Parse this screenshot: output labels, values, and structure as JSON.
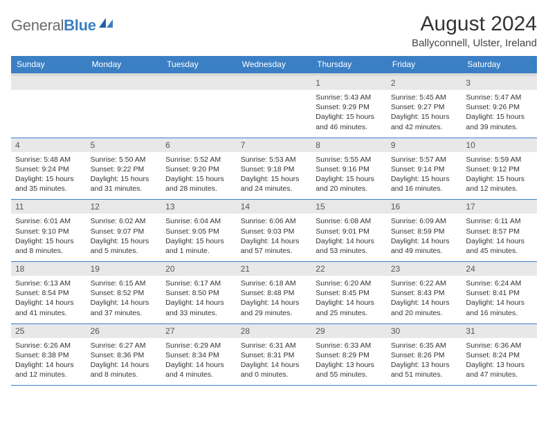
{
  "logo": {
    "word1": "General",
    "word2": "Blue"
  },
  "title": "August 2024",
  "subtitle": "Ballyconnell, Ulster, Ireland",
  "weekdays": [
    "Sunday",
    "Monday",
    "Tuesday",
    "Wednesday",
    "Thursday",
    "Friday",
    "Saturday"
  ],
  "colors": {
    "header_bar": "#3b7fc4",
    "gray_strip": "#d9d9d9",
    "daynum_bg": "#e8e8e8",
    "text": "#333333",
    "logo_gray": "#6b6b6b"
  },
  "weeks": [
    [
      {
        "num": "",
        "lines": []
      },
      {
        "num": "",
        "lines": []
      },
      {
        "num": "",
        "lines": []
      },
      {
        "num": "",
        "lines": []
      },
      {
        "num": "1",
        "lines": [
          "Sunrise: 5:43 AM",
          "Sunset: 9:29 PM",
          "Daylight: 15 hours",
          "and 46 minutes."
        ]
      },
      {
        "num": "2",
        "lines": [
          "Sunrise: 5:45 AM",
          "Sunset: 9:27 PM",
          "Daylight: 15 hours",
          "and 42 minutes."
        ]
      },
      {
        "num": "3",
        "lines": [
          "Sunrise: 5:47 AM",
          "Sunset: 9:26 PM",
          "Daylight: 15 hours",
          "and 39 minutes."
        ]
      }
    ],
    [
      {
        "num": "4",
        "lines": [
          "Sunrise: 5:48 AM",
          "Sunset: 9:24 PM",
          "Daylight: 15 hours",
          "and 35 minutes."
        ]
      },
      {
        "num": "5",
        "lines": [
          "Sunrise: 5:50 AM",
          "Sunset: 9:22 PM",
          "Daylight: 15 hours",
          "and 31 minutes."
        ]
      },
      {
        "num": "6",
        "lines": [
          "Sunrise: 5:52 AM",
          "Sunset: 9:20 PM",
          "Daylight: 15 hours",
          "and 28 minutes."
        ]
      },
      {
        "num": "7",
        "lines": [
          "Sunrise: 5:53 AM",
          "Sunset: 9:18 PM",
          "Daylight: 15 hours",
          "and 24 minutes."
        ]
      },
      {
        "num": "8",
        "lines": [
          "Sunrise: 5:55 AM",
          "Sunset: 9:16 PM",
          "Daylight: 15 hours",
          "and 20 minutes."
        ]
      },
      {
        "num": "9",
        "lines": [
          "Sunrise: 5:57 AM",
          "Sunset: 9:14 PM",
          "Daylight: 15 hours",
          "and 16 minutes."
        ]
      },
      {
        "num": "10",
        "lines": [
          "Sunrise: 5:59 AM",
          "Sunset: 9:12 PM",
          "Daylight: 15 hours",
          "and 12 minutes."
        ]
      }
    ],
    [
      {
        "num": "11",
        "lines": [
          "Sunrise: 6:01 AM",
          "Sunset: 9:10 PM",
          "Daylight: 15 hours",
          "and 8 minutes."
        ]
      },
      {
        "num": "12",
        "lines": [
          "Sunrise: 6:02 AM",
          "Sunset: 9:07 PM",
          "Daylight: 15 hours",
          "and 5 minutes."
        ]
      },
      {
        "num": "13",
        "lines": [
          "Sunrise: 6:04 AM",
          "Sunset: 9:05 PM",
          "Daylight: 15 hours",
          "and 1 minute."
        ]
      },
      {
        "num": "14",
        "lines": [
          "Sunrise: 6:06 AM",
          "Sunset: 9:03 PM",
          "Daylight: 14 hours",
          "and 57 minutes."
        ]
      },
      {
        "num": "15",
        "lines": [
          "Sunrise: 6:08 AM",
          "Sunset: 9:01 PM",
          "Daylight: 14 hours",
          "and 53 minutes."
        ]
      },
      {
        "num": "16",
        "lines": [
          "Sunrise: 6:09 AM",
          "Sunset: 8:59 PM",
          "Daylight: 14 hours",
          "and 49 minutes."
        ]
      },
      {
        "num": "17",
        "lines": [
          "Sunrise: 6:11 AM",
          "Sunset: 8:57 PM",
          "Daylight: 14 hours",
          "and 45 minutes."
        ]
      }
    ],
    [
      {
        "num": "18",
        "lines": [
          "Sunrise: 6:13 AM",
          "Sunset: 8:54 PM",
          "Daylight: 14 hours",
          "and 41 minutes."
        ]
      },
      {
        "num": "19",
        "lines": [
          "Sunrise: 6:15 AM",
          "Sunset: 8:52 PM",
          "Daylight: 14 hours",
          "and 37 minutes."
        ]
      },
      {
        "num": "20",
        "lines": [
          "Sunrise: 6:17 AM",
          "Sunset: 8:50 PM",
          "Daylight: 14 hours",
          "and 33 minutes."
        ]
      },
      {
        "num": "21",
        "lines": [
          "Sunrise: 6:18 AM",
          "Sunset: 8:48 PM",
          "Daylight: 14 hours",
          "and 29 minutes."
        ]
      },
      {
        "num": "22",
        "lines": [
          "Sunrise: 6:20 AM",
          "Sunset: 8:45 PM",
          "Daylight: 14 hours",
          "and 25 minutes."
        ]
      },
      {
        "num": "23",
        "lines": [
          "Sunrise: 6:22 AM",
          "Sunset: 8:43 PM",
          "Daylight: 14 hours",
          "and 20 minutes."
        ]
      },
      {
        "num": "24",
        "lines": [
          "Sunrise: 6:24 AM",
          "Sunset: 8:41 PM",
          "Daylight: 14 hours",
          "and 16 minutes."
        ]
      }
    ],
    [
      {
        "num": "25",
        "lines": [
          "Sunrise: 6:26 AM",
          "Sunset: 8:38 PM",
          "Daylight: 14 hours",
          "and 12 minutes."
        ]
      },
      {
        "num": "26",
        "lines": [
          "Sunrise: 6:27 AM",
          "Sunset: 8:36 PM",
          "Daylight: 14 hours",
          "and 8 minutes."
        ]
      },
      {
        "num": "27",
        "lines": [
          "Sunrise: 6:29 AM",
          "Sunset: 8:34 PM",
          "Daylight: 14 hours",
          "and 4 minutes."
        ]
      },
      {
        "num": "28",
        "lines": [
          "Sunrise: 6:31 AM",
          "Sunset: 8:31 PM",
          "Daylight: 14 hours",
          "and 0 minutes."
        ]
      },
      {
        "num": "29",
        "lines": [
          "Sunrise: 6:33 AM",
          "Sunset: 8:29 PM",
          "Daylight: 13 hours",
          "and 55 minutes."
        ]
      },
      {
        "num": "30",
        "lines": [
          "Sunrise: 6:35 AM",
          "Sunset: 8:26 PM",
          "Daylight: 13 hours",
          "and 51 minutes."
        ]
      },
      {
        "num": "31",
        "lines": [
          "Sunrise: 6:36 AM",
          "Sunset: 8:24 PM",
          "Daylight: 13 hours",
          "and 47 minutes."
        ]
      }
    ]
  ]
}
